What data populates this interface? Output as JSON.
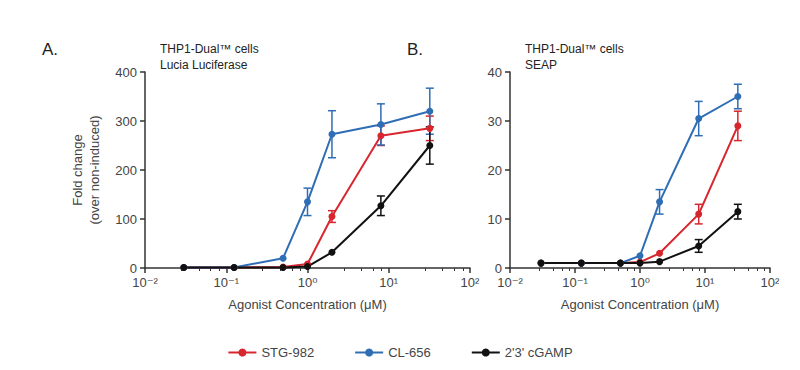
{
  "chart_data": [
    {
      "type": "line",
      "panel_label": "A.",
      "title": "THP1-Dual™ cells",
      "subtitle": "Lucia Luciferase",
      "x_label": "Agonist Concentration (μM)",
      "y_label": "Fold change\n(over non-induced)",
      "log": "x",
      "grid": false,
      "legend": "bottom",
      "marker": "circle",
      "xlim": [
        0.01,
        100
      ],
      "xticks": [
        {
          "value": 0.01,
          "label": "10⁻²"
        },
        {
          "value": 0.1,
          "label": "10⁻¹"
        },
        {
          "value": 1,
          "label": "10⁰"
        },
        {
          "value": 10,
          "label": "10¹"
        },
        {
          "value": 100,
          "label": "10²"
        }
      ],
      "ylim": [
        0,
        400
      ],
      "yticks": [
        0,
        100,
        200,
        300,
        400
      ],
      "x": [
        0.03,
        0.125,
        0.5,
        1,
        2,
        8,
        32
      ],
      "series": [
        {
          "name": "STG-982",
          "color": "#d7262e",
          "values": [
            1,
            1,
            2,
            8,
            105,
            270,
            285
          ],
          "errors": [
            null,
            null,
            null,
            null,
            12,
            20,
            25
          ]
        },
        {
          "name": "CL-656",
          "color": "#2f6db5",
          "values": [
            1,
            1,
            20,
            135,
            273,
            293,
            320
          ],
          "errors": [
            null,
            null,
            null,
            28,
            48,
            42,
            47
          ]
        },
        {
          "name": "2'3' cGAMP",
          "color": "#111111",
          "values": [
            1,
            1,
            1,
            3,
            32,
            127,
            250
          ],
          "errors": [
            null,
            null,
            null,
            null,
            null,
            20,
            38
          ]
        }
      ]
    },
    {
      "type": "line",
      "panel_label": "B.",
      "title": "THP1-Dual™ cells",
      "subtitle": "SEAP",
      "x_label": "Agonist Concentration (μM)",
      "log": "x",
      "grid": false,
      "legend": "bottom",
      "marker": "circle",
      "xlim": [
        0.01,
        100
      ],
      "xticks": [
        {
          "value": 0.01,
          "label": "10⁻²"
        },
        {
          "value": 0.1,
          "label": "10⁻¹"
        },
        {
          "value": 1,
          "label": "10⁰"
        },
        {
          "value": 10,
          "label": "10¹"
        },
        {
          "value": 100,
          "label": "10²"
        }
      ],
      "ylim": [
        0,
        40
      ],
      "yticks": [
        0,
        10,
        20,
        30,
        40
      ],
      "x": [
        0.03,
        0.125,
        0.5,
        1,
        2,
        8,
        32
      ],
      "series": [
        {
          "name": "STG-982",
          "color": "#d7262e",
          "values": [
            1,
            1,
            1,
            1.2,
            3,
            11,
            29
          ],
          "errors": [
            null,
            null,
            null,
            null,
            null,
            2,
            3
          ]
        },
        {
          "name": "CL-656",
          "color": "#2f6db5",
          "values": [
            1,
            1,
            1,
            2.5,
            13.5,
            30.5,
            35
          ],
          "errors": [
            null,
            null,
            null,
            null,
            2.5,
            3.5,
            2.5
          ]
        },
        {
          "name": "2'3' cGAMP",
          "color": "#111111",
          "values": [
            1,
            1,
            1,
            1,
            1.3,
            4.5,
            11.5
          ],
          "errors": [
            null,
            null,
            null,
            null,
            null,
            1.3,
            1.5
          ]
        }
      ]
    }
  ]
}
